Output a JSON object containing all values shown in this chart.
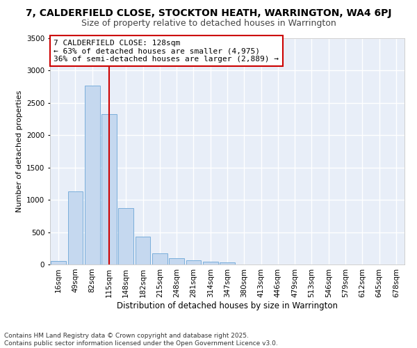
{
  "title1": "7, CALDERFIELD CLOSE, STOCKTON HEATH, WARRINGTON, WA4 6PJ",
  "title2": "Size of property relative to detached houses in Warrington",
  "xlabel": "Distribution of detached houses by size in Warrington",
  "ylabel": "Number of detached properties",
  "categories": [
    "16sqm",
    "49sqm",
    "82sqm",
    "115sqm",
    "148sqm",
    "182sqm",
    "215sqm",
    "248sqm",
    "281sqm",
    "314sqm",
    "347sqm",
    "380sqm",
    "413sqm",
    "446sqm",
    "479sqm",
    "513sqm",
    "546sqm",
    "579sqm",
    "612sqm",
    "645sqm",
    "678sqm"
  ],
  "values": [
    50,
    1130,
    2770,
    2330,
    870,
    430,
    170,
    100,
    70,
    40,
    30,
    5,
    2,
    0,
    0,
    0,
    0,
    0,
    0,
    0,
    0
  ],
  "bar_color": "#c5d8ef",
  "bar_edge_color": "#7aaedb",
  "vline_x_index": 3,
  "vline_color": "#cc0000",
  "annotation_text": "7 CALDERFIELD CLOSE: 128sqm\n← 63% of detached houses are smaller (4,975)\n36% of semi-detached houses are larger (2,889) →",
  "annotation_box_facecolor": "#ffffff",
  "annotation_box_edgecolor": "#cc0000",
  "ylim": [
    0,
    3500
  ],
  "yticks": [
    0,
    500,
    1000,
    1500,
    2000,
    2500,
    3000,
    3500
  ],
  "plot_bg_color": "#e8eef8",
  "grid_color": "#ffffff",
  "footnote1": "Contains HM Land Registry data © Crown copyright and database right 2025.",
  "footnote2": "Contains public sector information licensed under the Open Government Licence v3.0.",
  "title1_fontsize": 10,
  "title2_fontsize": 9,
  "xlabel_fontsize": 8.5,
  "ylabel_fontsize": 8,
  "tick_fontsize": 7.5,
  "annotation_fontsize": 8,
  "footnote_fontsize": 6.5
}
